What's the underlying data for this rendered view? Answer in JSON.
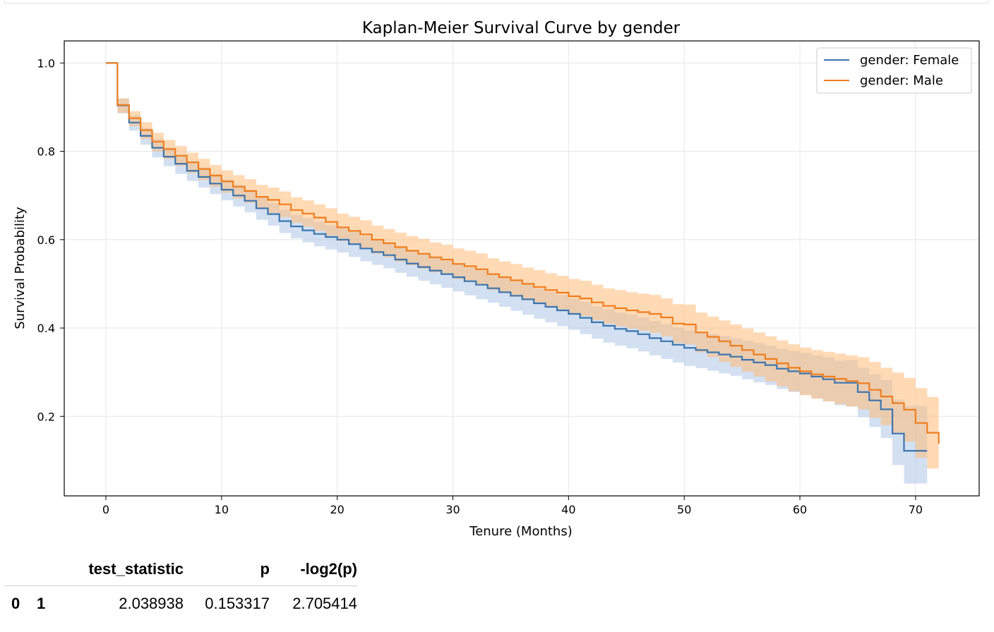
{
  "chart_data": {
    "type": "line",
    "step": true,
    "title": "Kaplan-Meier Survival Curve by gender",
    "xlabel": "Tenure (Months)",
    "ylabel": "Survival Probability",
    "xlim": [
      -3.6,
      75.5
    ],
    "ylim": [
      0.02,
      1.05
    ],
    "xticks": [
      0,
      10,
      20,
      30,
      40,
      50,
      60,
      70
    ],
    "yticks": [
      0.2,
      0.4,
      0.6,
      0.8,
      1.0
    ],
    "xtick_labels": [
      "0",
      "10",
      "20",
      "30",
      "40",
      "50",
      "60",
      "70"
    ],
    "ytick_labels": [
      "0.2",
      "0.4",
      "0.6",
      "0.8",
      "1.0"
    ],
    "grid": true,
    "legend_position": "top-right",
    "series": [
      {
        "name": "gender: Female",
        "color": "#3b75af",
        "band_color": "#aec7e8",
        "x": [
          0,
          1,
          2,
          3,
          4,
          5,
          6,
          7,
          8,
          9,
          10,
          11,
          12,
          13,
          14,
          15,
          16,
          17,
          18,
          19,
          20,
          21,
          22,
          23,
          24,
          25,
          26,
          27,
          28,
          29,
          30,
          31,
          32,
          33,
          34,
          35,
          36,
          37,
          38,
          39,
          40,
          41,
          42,
          43,
          44,
          45,
          46,
          47,
          48,
          49,
          50,
          51,
          52,
          53,
          54,
          55,
          56,
          57,
          58,
          59,
          60,
          61,
          62,
          63,
          64,
          65,
          66,
          67,
          68,
          69,
          70,
          71
        ],
        "y": [
          1.0,
          0.904,
          0.865,
          0.835,
          0.808,
          0.788,
          0.772,
          0.756,
          0.742,
          0.727,
          0.713,
          0.7,
          0.688,
          0.671,
          0.658,
          0.642,
          0.63,
          0.621,
          0.613,
          0.606,
          0.6,
          0.59,
          0.58,
          0.572,
          0.565,
          0.555,
          0.546,
          0.538,
          0.53,
          0.522,
          0.515,
          0.506,
          0.498,
          0.49,
          0.481,
          0.473,
          0.465,
          0.456,
          0.448,
          0.44,
          0.432,
          0.423,
          0.413,
          0.405,
          0.398,
          0.393,
          0.386,
          0.377,
          0.37,
          0.362,
          0.355,
          0.35,
          0.345,
          0.34,
          0.335,
          0.328,
          0.322,
          0.316,
          0.308,
          0.302,
          0.297,
          0.29,
          0.284,
          0.276,
          0.276,
          0.255,
          0.236,
          0.216,
          0.161,
          0.122,
          0.122,
          0.122
        ],
        "ci_lower": [
          1.0,
          0.886,
          0.847,
          0.815,
          0.786,
          0.766,
          0.749,
          0.733,
          0.718,
          0.703,
          0.689,
          0.675,
          0.662,
          0.645,
          0.632,
          0.615,
          0.603,
          0.594,
          0.585,
          0.578,
          0.571,
          0.561,
          0.551,
          0.543,
          0.535,
          0.525,
          0.516,
          0.507,
          0.499,
          0.491,
          0.483,
          0.474,
          0.465,
          0.457,
          0.448,
          0.439,
          0.43,
          0.421,
          0.413,
          0.404,
          0.396,
          0.386,
          0.376,
          0.367,
          0.36,
          0.354,
          0.347,
          0.338,
          0.33,
          0.322,
          0.314,
          0.309,
          0.303,
          0.297,
          0.292,
          0.284,
          0.277,
          0.271,
          0.262,
          0.255,
          0.249,
          0.241,
          0.234,
          0.225,
          0.222,
          0.198,
          0.176,
          0.151,
          0.09,
          0.048,
          0.048,
          0.048
        ],
        "ci_upper": [
          1.0,
          0.92,
          0.881,
          0.853,
          0.828,
          0.809,
          0.793,
          0.778,
          0.764,
          0.75,
          0.736,
          0.724,
          0.713,
          0.696,
          0.683,
          0.668,
          0.656,
          0.648,
          0.64,
          0.633,
          0.628,
          0.618,
          0.608,
          0.6,
          0.594,
          0.584,
          0.575,
          0.568,
          0.56,
          0.552,
          0.546,
          0.537,
          0.53,
          0.522,
          0.513,
          0.506,
          0.499,
          0.49,
          0.482,
          0.475,
          0.467,
          0.459,
          0.449,
          0.442,
          0.435,
          0.431,
          0.424,
          0.416,
          0.409,
          0.401,
          0.395,
          0.39,
          0.386,
          0.382,
          0.377,
          0.371,
          0.366,
          0.36,
          0.353,
          0.348,
          0.344,
          0.338,
          0.333,
          0.326,
          0.328,
          0.31,
          0.296,
          0.283,
          0.238,
          0.224,
          0.224,
          0.224
        ]
      },
      {
        "name": "gender: Male",
        "color": "#ef7e1d",
        "band_color": "#ffbb78",
        "x": [
          0,
          1,
          2,
          3,
          4,
          5,
          6,
          7,
          8,
          9,
          10,
          11,
          12,
          13,
          14,
          15,
          16,
          17,
          18,
          19,
          20,
          21,
          22,
          23,
          24,
          25,
          26,
          27,
          28,
          29,
          30,
          31,
          32,
          33,
          34,
          35,
          36,
          37,
          38,
          39,
          40,
          41,
          42,
          43,
          44,
          45,
          46,
          47,
          48,
          49,
          50,
          51,
          52,
          53,
          54,
          55,
          56,
          57,
          58,
          59,
          60,
          61,
          62,
          63,
          64,
          65,
          66,
          67,
          68,
          69,
          70,
          71,
          72
        ],
        "y": [
          1.0,
          0.905,
          0.875,
          0.848,
          0.822,
          0.805,
          0.79,
          0.775,
          0.76,
          0.745,
          0.732,
          0.72,
          0.71,
          0.697,
          0.69,
          0.68,
          0.667,
          0.659,
          0.65,
          0.64,
          0.628,
          0.62,
          0.612,
          0.6,
          0.592,
          0.583,
          0.575,
          0.568,
          0.56,
          0.555,
          0.545,
          0.54,
          0.533,
          0.522,
          0.515,
          0.508,
          0.5,
          0.493,
          0.486,
          0.48,
          0.472,
          0.467,
          0.458,
          0.45,
          0.445,
          0.44,
          0.436,
          0.432,
          0.424,
          0.41,
          0.408,
          0.39,
          0.38,
          0.37,
          0.36,
          0.35,
          0.34,
          0.33,
          0.32,
          0.31,
          0.302,
          0.295,
          0.29,
          0.285,
          0.28,
          0.275,
          0.26,
          0.245,
          0.23,
          0.215,
          0.185,
          0.163,
          0.138
        ],
        "ci_lower": [
          1.0,
          0.887,
          0.857,
          0.828,
          0.8,
          0.783,
          0.767,
          0.751,
          0.735,
          0.72,
          0.706,
          0.693,
          0.683,
          0.669,
          0.661,
          0.651,
          0.638,
          0.629,
          0.62,
          0.609,
          0.597,
          0.589,
          0.58,
          0.568,
          0.56,
          0.55,
          0.542,
          0.534,
          0.526,
          0.521,
          0.511,
          0.505,
          0.497,
          0.486,
          0.479,
          0.471,
          0.463,
          0.455,
          0.448,
          0.442,
          0.433,
          0.427,
          0.418,
          0.41,
          0.404,
          0.399,
          0.394,
          0.389,
          0.381,
          0.366,
          0.363,
          0.345,
          0.334,
          0.323,
          0.312,
          0.301,
          0.29,
          0.279,
          0.268,
          0.257,
          0.248,
          0.24,
          0.234,
          0.228,
          0.222,
          0.216,
          0.197,
          0.18,
          0.161,
          0.143,
          0.106,
          0.082,
          0.072
        ],
        "ci_upper": [
          1.0,
          0.92,
          0.891,
          0.866,
          0.842,
          0.826,
          0.812,
          0.797,
          0.783,
          0.769,
          0.757,
          0.746,
          0.737,
          0.724,
          0.718,
          0.709,
          0.696,
          0.689,
          0.68,
          0.671,
          0.659,
          0.652,
          0.644,
          0.632,
          0.624,
          0.616,
          0.608,
          0.602,
          0.594,
          0.589,
          0.58,
          0.575,
          0.569,
          0.558,
          0.551,
          0.545,
          0.537,
          0.531,
          0.524,
          0.518,
          0.511,
          0.507,
          0.498,
          0.49,
          0.486,
          0.481,
          0.478,
          0.475,
          0.467,
          0.454,
          0.453,
          0.435,
          0.426,
          0.417,
          0.408,
          0.399,
          0.39,
          0.381,
          0.372,
          0.363,
          0.356,
          0.35,
          0.346,
          0.342,
          0.338,
          0.334,
          0.323,
          0.31,
          0.299,
          0.287,
          0.264,
          0.244,
          0.217
        ]
      }
    ]
  },
  "table": {
    "headers": [
      "",
      "",
      "test_statistic",
      "p",
      "-log2(p)"
    ],
    "rows": [
      {
        "index0": "0",
        "index1": "1",
        "test_statistic": "2.038938",
        "p": "0.153317",
        "neglog2p": "2.705414"
      }
    ]
  }
}
